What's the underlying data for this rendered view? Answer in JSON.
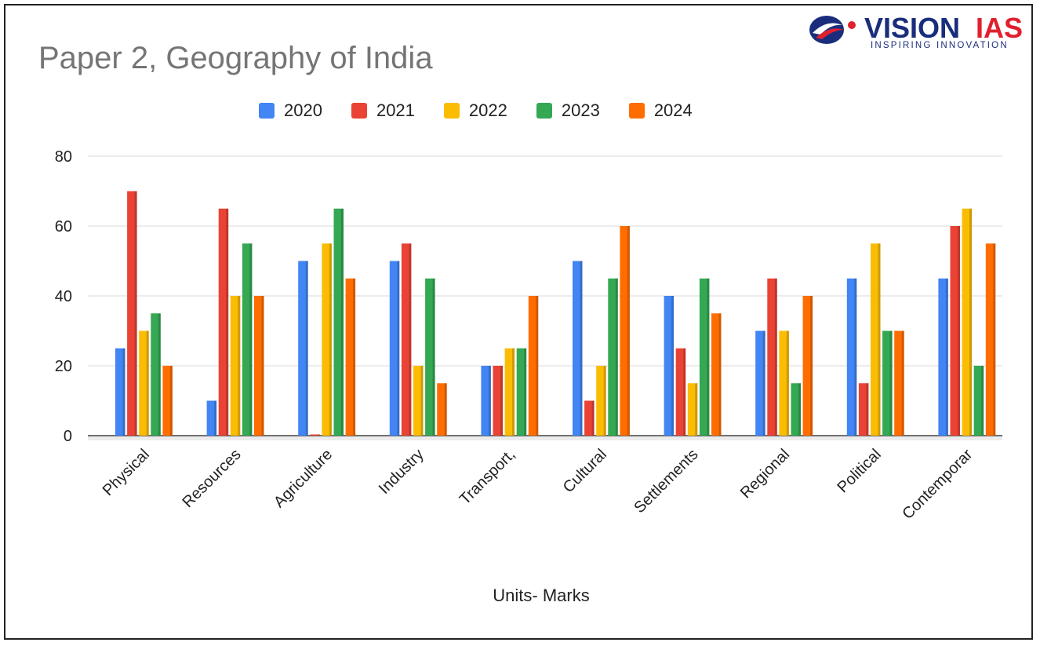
{
  "title": "Paper 2, Geography of India",
  "logo": {
    "word_part1": "VISION",
    "word_part2": "IAS",
    "tagline": "INSPIRING INNOVATION",
    "color_primary": "#1a2d7c",
    "color_accent": "#e0202e"
  },
  "chart_data": {
    "type": "bar",
    "title": "Paper 2, Geography of India",
    "xlabel": "Units- Marks",
    "ylabel": "",
    "ylim": [
      0,
      80
    ],
    "yticks": [
      0,
      20,
      40,
      60,
      80
    ],
    "grid": true,
    "legend_position": "top",
    "categories": [
      "Physical",
      "Resources",
      "Agriculture",
      "Industry",
      "Transport,",
      "Cultural",
      "Settlements",
      "Regional",
      "Political",
      "Contemporar"
    ],
    "series": [
      {
        "name": "2020",
        "color": "#4285f4",
        "values": [
          25,
          10,
          50,
          50,
          20,
          50,
          40,
          30,
          45,
          45
        ]
      },
      {
        "name": "2021",
        "color": "#ea4335",
        "values": [
          70,
          65,
          0,
          55,
          20,
          10,
          25,
          45,
          15,
          60
        ]
      },
      {
        "name": "2022",
        "color": "#fbbc04",
        "values": [
          30,
          40,
          55,
          20,
          25,
          20,
          15,
          30,
          55,
          65
        ]
      },
      {
        "name": "2023",
        "color": "#34a853",
        "values": [
          35,
          55,
          65,
          45,
          25,
          45,
          45,
          15,
          30,
          20
        ]
      },
      {
        "name": "2024",
        "color": "#ff6d01",
        "values": [
          20,
          40,
          45,
          15,
          40,
          60,
          35,
          40,
          30,
          55
        ]
      }
    ]
  }
}
